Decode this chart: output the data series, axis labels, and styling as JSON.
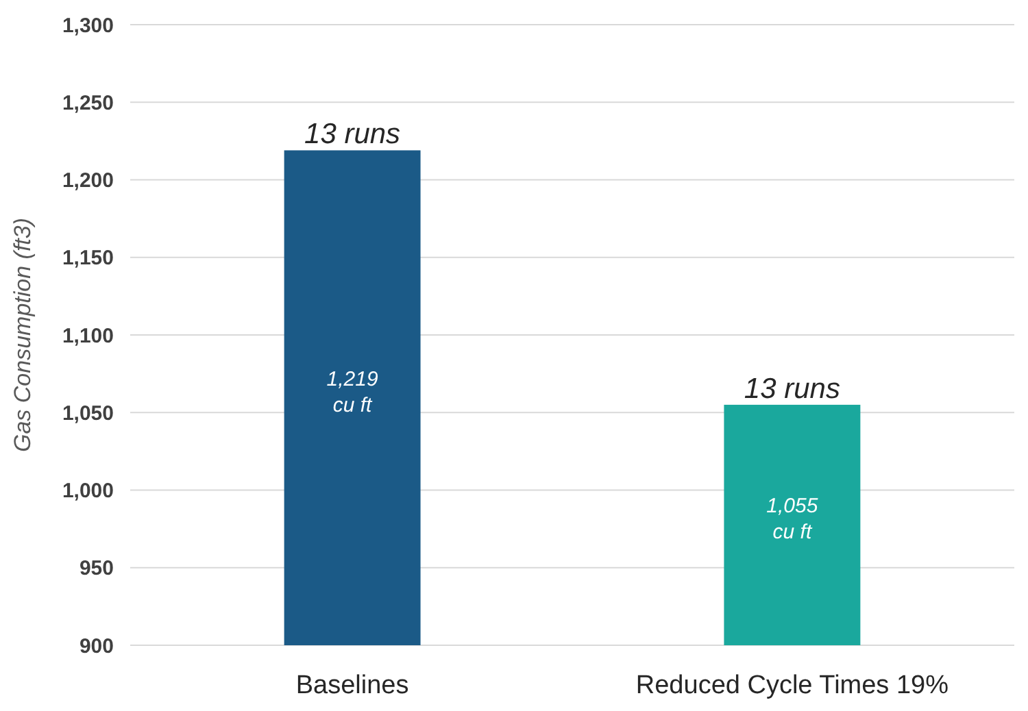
{
  "chart_data": {
    "type": "bar",
    "ylabel": "Gas Consumption (ft3)",
    "categories": [
      "Baselines",
      "Reduced Cycle Times 19%"
    ],
    "values": [
      1219,
      1055
    ],
    "colors": [
      "#1b5a87",
      "#1aa89d"
    ],
    "value_labels": [
      "1,219 cu ft",
      "1,055 cu ft"
    ],
    "annotations": [
      {
        "text": "13 runs",
        "x": "Baselines",
        "y": 1219
      },
      {
        "text": "13 runs",
        "x": "Reduced Cycle Times 19%",
        "y": 1055
      }
    ],
    "ylim": [
      900,
      1300
    ],
    "yticks": [
      {
        "value": 900,
        "label": "900"
      },
      {
        "value": 950,
        "label": "950"
      },
      {
        "value": 1000,
        "label": "1,000"
      },
      {
        "value": 1050,
        "label": "1,050"
      },
      {
        "value": 1100,
        "label": "1,100"
      },
      {
        "value": 1150,
        "label": "1,150"
      },
      {
        "value": 1200,
        "label": "1,200"
      },
      {
        "value": 1250,
        "label": "1,250"
      },
      {
        "value": 1300,
        "label": "1,300"
      }
    ],
    "grid": "y"
  }
}
